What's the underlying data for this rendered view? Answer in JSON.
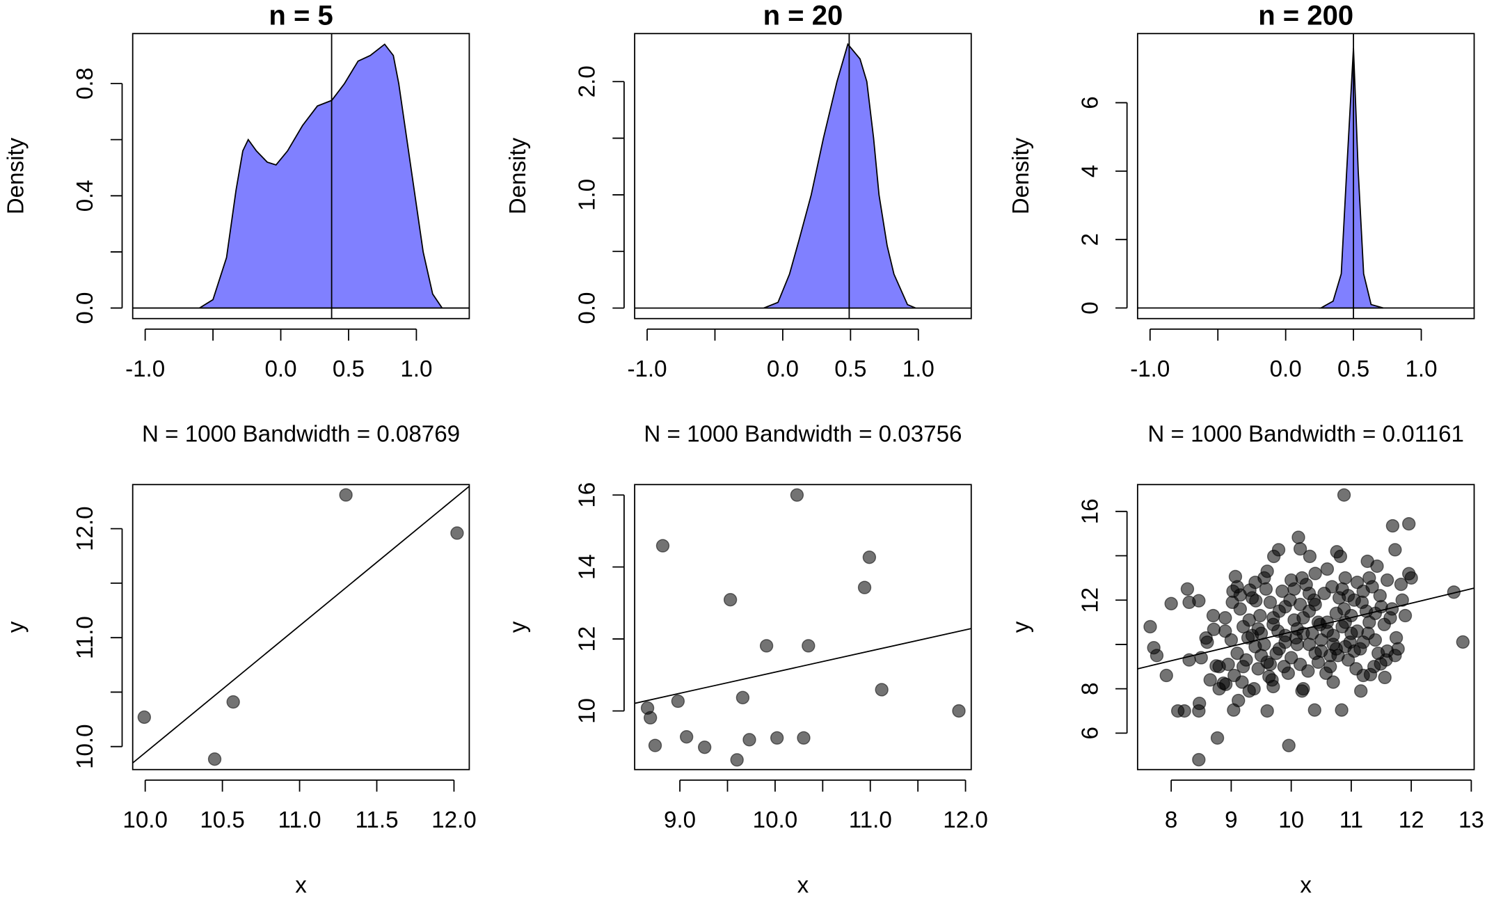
{
  "chart_data": [
    {
      "type": "area",
      "title": "n = 5",
      "xlabel": "N = 1000   Bandwidth = 0.08769",
      "ylabel": "Density",
      "color": "#8080ff",
      "x": [
        -0.6,
        -0.5,
        -0.4,
        -0.33,
        -0.28,
        -0.24,
        -0.18,
        -0.1,
        -0.035,
        0.05,
        0.16,
        0.27,
        0.376,
        0.47,
        0.57,
        0.66,
        0.766,
        0.83,
        0.87,
        0.93,
        0.99,
        1.05,
        1.12,
        1.19
      ],
      "values": [
        0,
        0.03,
        0.18,
        0.42,
        0.56,
        0.6,
        0.56,
        0.52,
        0.51,
        0.56,
        0.65,
        0.72,
        0.74,
        0.8,
        0.88,
        0.9,
        0.94,
        0.9,
        0.8,
        0.6,
        0.4,
        0.2,
        0.05,
        0
      ],
      "vline": 0.375,
      "xlim": [
        -1.092,
        1.39
      ],
      "ylim": [
        -0.0376,
        0.978
      ],
      "xticks": [
        {
          "value": -1,
          "label": "-1.0"
        },
        {
          "value": -0.5,
          "label": null
        },
        {
          "value": 0,
          "label": "0.0"
        },
        0.5,
        {
          "value": 1,
          "label": "1.0"
        }
      ],
      "yticks": [
        {
          "value": 0,
          "label": "0.0"
        },
        {
          "value": 0.2,
          "label": null
        },
        0.4,
        {
          "value": 0.6,
          "label": null
        },
        0.8
      ]
    },
    {
      "type": "area",
      "title": "n = 20",
      "xlabel": "N = 1000   Bandwidth = 0.03756",
      "ylabel": "Density",
      "color": "#8080ff",
      "x": [
        -0.14,
        -0.035,
        0.05,
        0.12,
        0.21,
        0.3,
        0.4,
        0.48,
        0.57,
        0.62,
        0.67,
        0.71,
        0.77,
        0.82,
        0.92,
        0.98
      ],
      "values": [
        0,
        0.05,
        0.3,
        0.6,
        1.0,
        1.5,
        2.0,
        2.33,
        2.2,
        2.0,
        1.5,
        1.0,
        0.55,
        0.3,
        0.03,
        0
      ],
      "vline": 0.49,
      "xlim": [
        -1.092,
        1.39
      ],
      "ylim": [
        -0.093,
        2.424
      ],
      "xticks": [
        {
          "value": -1,
          "label": "-1.0"
        },
        {
          "value": -0.5,
          "label": null
        },
        {
          "value": 0,
          "label": "0.0"
        },
        0.5,
        {
          "value": 1,
          "label": "1.0"
        }
      ],
      "yticks": [
        {
          "value": 0,
          "label": "0.0"
        },
        {
          "value": 0.5,
          "label": null
        },
        {
          "value": 1,
          "label": "1.0"
        },
        {
          "value": 1.5,
          "label": null
        },
        {
          "value": 2,
          "label": "2.0"
        }
      ]
    },
    {
      "type": "area",
      "title": "n = 200",
      "xlabel": "N = 1000   Bandwidth = 0.01161",
      "ylabel": "Density",
      "color": "#8080ff",
      "x": [
        0.26,
        0.35,
        0.41,
        0.45,
        0.5,
        0.535,
        0.575,
        0.63,
        0.72
      ],
      "values": [
        0,
        0.2,
        1,
        4,
        7.6,
        4,
        1,
        0.1,
        0
      ],
      "vline": 0.5,
      "xlim": [
        -1.092,
        1.39
      ],
      "ylim": [
        -0.31,
        8.02
      ],
      "xticks": [
        {
          "value": -1,
          "label": "-1.0"
        },
        {
          "value": -0.5,
          "label": null
        },
        {
          "value": 0,
          "label": "0.0"
        },
        0.5,
        {
          "value": 1,
          "label": "1.0"
        }
      ],
      "yticks": [
        0,
        2,
        4,
        6
      ]
    },
    {
      "type": "scatter",
      "xlabel": "x",
      "ylabel": "y",
      "color": "#000000",
      "alpha": 0.55,
      "x": [
        9.994,
        10.45,
        10.57,
        11.3,
        12.02
      ],
      "values": [
        10.27,
        9.885,
        10.41,
        12.31,
        11.96
      ],
      "fit": {
        "intercept": -1.706,
        "slope": 1.165
      },
      "xlim": [
        9.919,
        12.099
      ],
      "ylim": [
        9.789,
        12.405
      ],
      "xticks": [
        {
          "value": 10,
          "label": "10.0"
        },
        10.5,
        {
          "value": 11,
          "label": "11.0"
        },
        11.5,
        {
          "value": 12,
          "label": "12.0"
        }
      ],
      "yticks": [
        {
          "value": 10,
          "label": "10.0"
        },
        {
          "value": 10.5,
          "label": null
        },
        {
          "value": 11,
          "label": "11.0"
        },
        {
          "value": 11.5,
          "label": null
        },
        {
          "value": 12,
          "label": "12.0"
        }
      ]
    },
    {
      "type": "scatter",
      "xlabel": "x",
      "ylabel": "y",
      "color": "#000000",
      "alpha": 0.55,
      "x": [
        8.66,
        8.69,
        8.74,
        8.82,
        8.98,
        9.07,
        9.26,
        9.53,
        9.6,
        9.66,
        9.73,
        9.91,
        10.02,
        10.23,
        10.3,
        10.35,
        10.94,
        10.99,
        11.12,
        11.93
      ],
      "values": [
        10.08,
        9.81,
        9.04,
        14.59,
        10.27,
        9.28,
        8.99,
        13.09,
        8.64,
        10.37,
        9.2,
        11.81,
        9.25,
        16.0,
        9.25,
        11.81,
        13.43,
        14.27,
        10.59,
        10.0
      ],
      "fit": {
        "intercept": 5.198,
        "slope": 0.588
      },
      "xlim": [
        8.525,
        12.06
      ],
      "ylim": [
        8.37,
        16.29
      ],
      "xticks": [
        {
          "value": 9,
          "label": "9.0"
        },
        {
          "value": 9.5,
          "label": null
        },
        {
          "value": 10,
          "label": "10.0"
        },
        {
          "value": 10.5,
          "label": null
        },
        {
          "value": 11,
          "label": "11.0"
        },
        {
          "value": 11.5,
          "label": null
        },
        {
          "value": 12,
          "label": "12.0"
        }
      ],
      "yticks": [
        10,
        12,
        14,
        16
      ]
    },
    {
      "type": "scatter",
      "xlabel": "x",
      "ylabel": "y",
      "color": "#000000",
      "alpha": 0.55,
      "x": [
        7.65,
        7.71,
        7.76,
        7.92,
        8.0,
        8.11,
        8.22,
        8.27,
        8.3,
        8.3,
        8.46,
        8.46,
        8.46,
        8.47,
        8.77,
        8.58,
        8.71,
        8.75,
        8.87,
        8.91,
        9.04,
        9.07,
        9.12,
        9.03,
        9.15,
        9.31,
        9.41,
        9.6,
        9.63,
        9.71,
        9.79,
        9.96,
        10.12,
        10.15,
        10.18,
        10.31,
        10.39,
        10.88,
        10.76,
        10.84,
        10.82,
        11.16,
        11.27,
        11.43,
        11.69,
        11.73,
        11.96,
        11.96,
        11.83,
        12.71,
        12.86,
        11.73,
        11.49,
        11.56,
        11.32,
        9.0,
        9.1,
        9.2,
        9.3,
        9.4,
        9.5,
        9.6,
        9.7,
        9.8,
        9.9,
        10.0,
        10.1,
        10.2,
        10.3,
        10.4,
        10.5,
        10.6,
        10.7,
        10.8,
        10.9,
        11.0,
        11.1,
        11.2,
        11.3,
        11.4,
        11.5,
        11.6,
        8.8,
        8.9,
        9.05,
        9.15,
        9.25,
        9.35,
        9.45,
        9.55,
        9.65,
        9.75,
        9.85,
        9.95,
        10.05,
        10.15,
        10.25,
        10.35,
        10.45,
        10.55,
        10.65,
        10.75,
        10.85,
        10.95,
        11.05,
        11.15,
        11.25,
        11.35,
        11.45,
        11.55,
        11.65,
        11.75,
        11.85,
        8.6,
        8.65,
        8.95,
        9.02,
        9.18,
        9.28,
        9.38,
        9.48,
        9.58,
        9.68,
        9.78,
        9.88,
        9.98,
        10.08,
        10.18,
        10.28,
        10.38,
        10.48,
        10.58,
        10.68,
        10.78,
        10.88,
        10.98,
        11.08,
        11.18,
        11.28,
        11.38,
        11.48,
        11.58,
        11.68,
        11.78,
        11.9,
        9.1,
        9.6,
        10.0,
        10.4,
        10.6,
        10.9,
        11.1,
        9.3,
        9.7,
        10.2,
        10.7,
        11.2,
        9.9,
        10.1,
        10.3,
        10.5,
        9.5,
        9.8,
        10.7,
        11.0,
        10.2,
        9.7,
        10.9,
        10.4,
        10.6,
        9.2,
        8.9,
        9.4,
        10.3,
        11.3,
        8.5,
        8.7,
        8.8,
        9.55,
        10.85,
        11.6,
        12.0,
        10.05,
        9.45,
        10.65,
        11.4,
        9.9,
        10.45,
        11.05,
        9.65,
        10.95,
        10.15,
        9.35,
        10.75,
        11.2
      ],
      "values": [
        10.8,
        9.85,
        9.5,
        8.6,
        11.84,
        7.0,
        7.0,
        12.5,
        11.9,
        9.3,
        11.97,
        7.0,
        4.8,
        7.34,
        5.78,
        10.29,
        10.68,
        9.03,
        8.25,
        8.2,
        7.04,
        13.06,
        7.47,
        12.4,
        12.23,
        12.45,
        11.97,
        7.0,
        8.55,
        13.97,
        14.27,
        5.44,
        14.83,
        14.31,
        7.9,
        13.97,
        7.04,
        16.74,
        14.18,
        7.04,
        13.97,
        7.9,
        13.75,
        13.53,
        15.35,
        14.27,
        15.44,
        13.19,
        12.71,
        12.36,
        10.11,
        9.5,
        9.12,
        8.51,
        8.64,
        10.2,
        9.6,
        10.8,
        11.1,
        9.9,
        10.5,
        9.2,
        10.9,
        11.5,
        10.1,
        9.4,
        10.7,
        11.2,
        10.0,
        11.8,
        9.7,
        11.0,
        10.4,
        12.1,
        9.9,
        11.3,
        10.6,
        12.4,
        11.0,
        10.2,
        11.7,
        12.9,
        9.0,
        10.6,
        8.6,
        11.6,
        9.3,
        12.1,
        8.9,
        10.0,
        11.9,
        9.6,
        12.4,
        8.7,
        11.1,
        9.1,
        12.7,
        10.5,
        9.2,
        12.3,
        9.5,
        11.4,
        10.8,
        9.3,
        12.0,
        9.8,
        11.5,
        12.6,
        9.6,
        10.9,
        11.2,
        10.3,
        12.0,
        10.1,
        8.4,
        9.1,
        11.9,
        8.3,
        10.3,
        8.0,
        11.3,
        12.5,
        8.4,
        10.6,
        9.0,
        12.0,
        10.3,
        13.0,
        8.8,
        12.0,
        10.9,
        8.7,
        12.6,
        9.5,
        11.6,
        10.1,
        8.9,
        11.9,
        10.5,
        9.0,
        12.2,
        9.3,
        11.6,
        9.8,
        11.3,
        12.6,
        13.3,
        12.9,
        13.2,
        13.4,
        13.0,
        12.8,
        7.9,
        8.1,
        8.0,
        8.3,
        8.6,
        10.4,
        10.0,
        11.5,
        10.2,
        9.5,
        9.8,
        10.0,
        10.5,
        10.5,
        11.2,
        11.0,
        9.6,
        10.6,
        9.0,
        11.2,
        12.8,
        12.3,
        13.0,
        9.4,
        11.3,
        8.0,
        13.0,
        12.5,
        9.7,
        13.0,
        12.5,
        10.7,
        9.0,
        11.4,
        11.7,
        11.0,
        9.7,
        9.1,
        12.2,
        11.8,
        10.4,
        9.8,
        10.1
      ],
      "fit": {
        "intercept": 4.071,
        "slope": 0.649
      },
      "xlim": [
        7.44,
        13.048
      ],
      "ylim": [
        4.355,
        17.21
      ],
      "xticks": [
        8,
        9,
        10,
        11,
        12,
        13
      ],
      "yticks": [
        6,
        8,
        {
          "value": 10,
          "label": null
        },
        12,
        {
          "value": 14,
          "label": null
        },
        16
      ]
    }
  ]
}
